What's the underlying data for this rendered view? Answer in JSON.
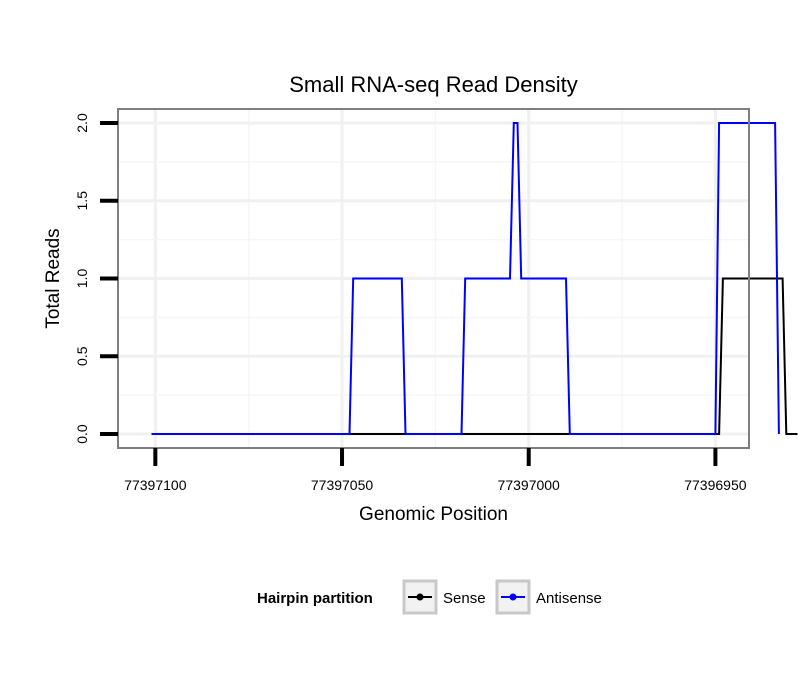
{
  "chart_data": {
    "type": "line",
    "title": "Small RNA-seq Read Density",
    "xlabel": "Genomic Position",
    "ylabel": "Total Reads",
    "x_reversed": true,
    "xlim": [
      77397110,
      77396941
    ],
    "ylim": [
      -0.09,
      2.09
    ],
    "x_ticks": [
      77397100,
      77397050,
      77397000,
      77396950
    ],
    "x_tick_labels": [
      "77397100",
      "77397050",
      "77397000",
      "77396950"
    ],
    "y_ticks": [
      0.0,
      0.5,
      1.0,
      1.5,
      2.0
    ],
    "y_tick_labels": [
      "0.0",
      "0.5",
      "1.0",
      "1.5",
      "2.0"
    ],
    "grid": true,
    "legend": {
      "title": "Hairpin partition",
      "position": "bottom"
    },
    "series": [
      {
        "name": "Sense",
        "color": "#000000",
        "x": [
          77397101,
          77396949,
          77396948,
          77396932,
          77396931,
          77396928
        ],
        "y": [
          0,
          0,
          1,
          1,
          0,
          0
        ]
      },
      {
        "name": "Antisense",
        "color": "#0000ff",
        "x": [
          77397101,
          77397048,
          77397047,
          77397034,
          77397033,
          77397018,
          77397017,
          77397005,
          77397004,
          77397003,
          77397002,
          77396990,
          77396989,
          77396950,
          77396949,
          77396934,
          77396933
        ],
        "y": [
          0,
          0,
          1,
          1,
          0,
          0,
          1,
          1,
          2,
          2,
          1,
          1,
          0,
          0,
          2,
          2,
          0
        ]
      }
    ]
  }
}
